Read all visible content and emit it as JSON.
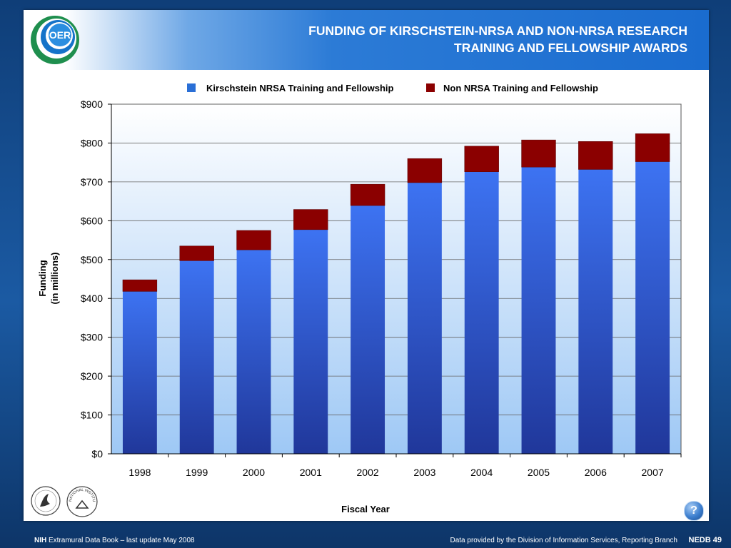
{
  "header": {
    "title_line1": "FUNDING OF KIRSCHSTEIN-NRSA AND NON-NRSA RESEARCH",
    "title_line2": "TRAINING AND FELLOWSHIP AWARDS",
    "logo_text": "OER"
  },
  "footer": {
    "nih": "NIH",
    "book": " Extramural Data Book – last update May 2008",
    "source": "Data provided by the Division of Information Services, Reporting Branch",
    "page": "NEDB 49",
    "help_label": "?"
  },
  "seals": {
    "nih_seal_text": "NATIONAL INSTITUTES OF HEALTH"
  },
  "colors": {
    "nrsa": "#3a6ff0",
    "non_nrsa": "#8b0000",
    "plot_bg_top": "#ffffff",
    "plot_bg_bottom": "#9ec8f5"
  },
  "chart_data": {
    "type": "bar",
    "stacked": true,
    "categories": [
      "1998",
      "1999",
      "2000",
      "2001",
      "2002",
      "2003",
      "2004",
      "2005",
      "2006",
      "2007"
    ],
    "series": [
      {
        "name": "Kirschstein NRSA Training and Fellowship",
        "values": [
          418,
          497,
          525,
          577,
          639,
          698,
          726,
          738,
          732,
          752
        ]
      },
      {
        "name": "Non NRSA Training and Fellowship",
        "values": [
          30,
          38,
          50,
          52,
          55,
          62,
          66,
          70,
          72,
          72
        ]
      }
    ],
    "title": "",
    "xlabel": "Fiscal Year",
    "ylabel_line1": "Funding",
    "ylabel_line2": "(in millions)",
    "ylim": [
      0,
      900
    ],
    "yticks": [
      0,
      100,
      200,
      300,
      400,
      500,
      600,
      700,
      800,
      900
    ],
    "ytick_labels": [
      "$0",
      "$100",
      "$200",
      "$300",
      "$400",
      "$500",
      "$600",
      "$700",
      "$800",
      "$900"
    ],
    "grid": true,
    "legend_position": "top"
  }
}
